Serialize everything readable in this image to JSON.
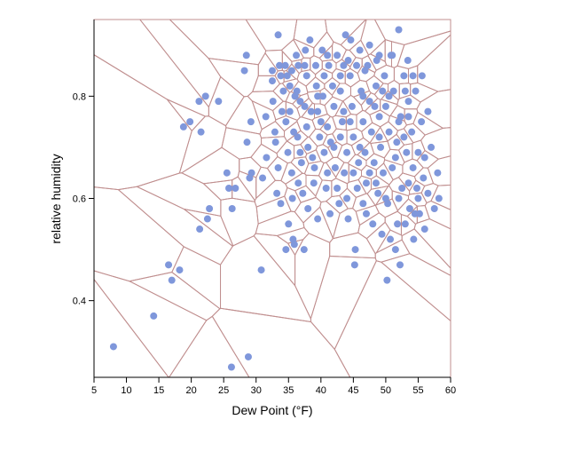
{
  "chart_data": {
    "type": "scatter",
    "title": "",
    "xlabel": "Dew Point (°F)",
    "ylabel": "relative humidity",
    "xlim": [
      5,
      60
    ],
    "ylim": [
      0.25,
      0.95
    ],
    "x_ticks": [
      5,
      10,
      15,
      20,
      25,
      30,
      35,
      40,
      45,
      50,
      55,
      60
    ],
    "y_ticks": [
      0.4,
      0.6,
      0.8
    ],
    "overlay": "voronoi",
    "colors": {
      "points": "#7f97db",
      "voronoi": "#c08f8f",
      "axis": "#000000"
    },
    "points": [
      [
        8,
        0.31
      ],
      [
        14.2,
        0.37
      ],
      [
        16.5,
        0.47
      ],
      [
        17,
        0.44
      ],
      [
        18.2,
        0.46
      ],
      [
        18.8,
        0.74
      ],
      [
        19.8,
        0.75
      ],
      [
        21.2,
        0.79
      ],
      [
        21.5,
        0.73
      ],
      [
        21.3,
        0.54
      ],
      [
        22.5,
        0.56
      ],
      [
        22.8,
        0.58
      ],
      [
        22.2,
        0.8
      ],
      [
        24.2,
        0.79
      ],
      [
        25.5,
        0.65
      ],
      [
        25.8,
        0.62
      ],
      [
        26.2,
        0.27
      ],
      [
        26.8,
        0.62
      ],
      [
        26.3,
        0.58
      ],
      [
        28.2,
        0.85
      ],
      [
        28.5,
        0.88
      ],
      [
        28.6,
        0.71
      ],
      [
        28.8,
        0.29
      ],
      [
        29.2,
        0.75
      ],
      [
        29,
        0.64
      ],
      [
        29.3,
        0.65
      ],
      [
        30.8,
        0.46
      ],
      [
        31,
        0.64
      ],
      [
        31.5,
        0.76
      ],
      [
        31.6,
        0.68
      ],
      [
        32.5,
        0.85
      ],
      [
        32.5,
        0.83
      ],
      [
        32.6,
        0.79
      ],
      [
        32.9,
        0.73
      ],
      [
        33,
        0.71
      ],
      [
        33.2,
        0.61
      ],
      [
        33.4,
        0.92
      ],
      [
        33.6,
        0.86
      ],
      [
        33.4,
        0.66
      ],
      [
        33.8,
        0.59
      ],
      [
        34.2,
        0.81
      ],
      [
        34.5,
        0.86
      ],
      [
        34.8,
        0.84
      ],
      [
        34.6,
        0.75
      ],
      [
        34.9,
        0.69
      ],
      [
        34.6,
        0.5
      ],
      [
        35,
        0.55
      ],
      [
        35.2,
        0.82
      ],
      [
        35.2,
        0.77
      ],
      [
        35.5,
        0.65
      ],
      [
        35.6,
        0.6
      ],
      [
        35.7,
        0.52
      ],
      [
        35.9,
        0.51
      ],
      [
        36.2,
        0.88
      ],
      [
        36.3,
        0.81
      ],
      [
        36.4,
        0.72
      ],
      [
        36.5,
        0.86
      ],
      [
        36.8,
        0.69
      ],
      [
        37,
        0.67
      ],
      [
        37.2,
        0.61
      ],
      [
        37.4,
        0.5
      ],
      [
        37.6,
        0.89
      ],
      [
        37.8,
        0.84
      ],
      [
        37.8,
        0.74
      ],
      [
        38,
        0.58
      ],
      [
        38.3,
        0.91
      ],
      [
        38.5,
        0.77
      ],
      [
        38.7,
        0.68
      ],
      [
        38.9,
        0.63
      ],
      [
        39,
        0.66
      ],
      [
        39.2,
        0.86
      ],
      [
        39.3,
        0.82
      ],
      [
        39.5,
        0.56
      ],
      [
        39.8,
        0.72
      ],
      [
        40.2,
        0.89
      ],
      [
        40.3,
        0.8
      ],
      [
        40.5,
        0.69
      ],
      [
        40.8,
        0.62
      ],
      [
        41,
        0.74
      ],
      [
        41.2,
        0.86
      ],
      [
        41.4,
        0.57
      ],
      [
        41.5,
        0.71
      ],
      [
        41.8,
        0.82
      ],
      [
        42,
        0.78
      ],
      [
        42.2,
        0.66
      ],
      [
        42.5,
        0.62
      ],
      [
        42.5,
        0.88
      ],
      [
        42.8,
        0.59
      ],
      [
        43,
        0.81
      ],
      [
        43.3,
        0.75
      ],
      [
        43.5,
        0.86
      ],
      [
        43.6,
        0.65
      ],
      [
        44,
        0.69
      ],
      [
        44.2,
        0.56
      ],
      [
        44.5,
        0.84
      ],
      [
        44.6,
        0.91
      ],
      [
        44.8,
        0.78
      ],
      [
        45,
        0.72
      ],
      [
        45.2,
        0.47
      ],
      [
        45.3,
        0.5
      ],
      [
        45.5,
        0.86
      ],
      [
        45.6,
        0.62
      ],
      [
        45.8,
        0.67
      ],
      [
        46,
        0.89
      ],
      [
        46.2,
        0.81
      ],
      [
        46.5,
        0.75
      ],
      [
        46.5,
        0.59
      ],
      [
        46.8,
        0.69
      ],
      [
        47,
        0.63
      ],
      [
        47.2,
        0.86
      ],
      [
        47.5,
        0.79
      ],
      [
        47.8,
        0.73
      ],
      [
        48,
        0.55
      ],
      [
        48.2,
        0.67
      ],
      [
        48.5,
        0.82
      ],
      [
        48.6,
        0.87
      ],
      [
        48.8,
        0.61
      ],
      [
        49,
        0.76
      ],
      [
        49.2,
        0.7
      ],
      [
        49.4,
        0.53
      ],
      [
        49.6,
        0.65
      ],
      [
        49.8,
        0.84
      ],
      [
        50,
        0.78
      ],
      [
        50.2,
        0.44
      ],
      [
        50.3,
        0.59
      ],
      [
        50.5,
        0.73
      ],
      [
        50.7,
        0.52
      ],
      [
        50.8,
        0.88
      ],
      [
        51,
        0.66
      ],
      [
        51.2,
        0.81
      ],
      [
        51.5,
        0.5
      ],
      [
        51.7,
        0.71
      ],
      [
        52,
        0.93
      ],
      [
        52.2,
        0.47
      ],
      [
        52.3,
        0.76
      ],
      [
        52.5,
        0.62
      ],
      [
        52.8,
        0.84
      ],
      [
        53,
        0.55
      ],
      [
        53.2,
        0.69
      ],
      [
        53.4,
        0.87
      ],
      [
        53.5,
        0.79
      ],
      [
        53.7,
        0.58
      ],
      [
        54,
        0.73
      ],
      [
        54.2,
        0.66
      ],
      [
        54.3,
        0.52
      ],
      [
        54.6,
        0.81
      ],
      [
        54.8,
        0.62
      ],
      [
        55,
        0.69
      ],
      [
        55.2,
        0.57
      ],
      [
        55.5,
        0.75
      ],
      [
        55.8,
        0.64
      ],
      [
        56,
        0.54
      ],
      [
        56.5,
        0.61
      ],
      [
        57,
        0.7
      ],
      [
        57.5,
        0.58
      ],
      [
        58,
        0.65
      ],
      [
        58.2,
        0.6
      ],
      [
        56.5,
        0.77
      ],
      [
        55.6,
        0.84
      ],
      [
        54.2,
        0.84
      ],
      [
        51,
        0.88
      ],
      [
        49,
        0.88
      ],
      [
        47.5,
        0.9
      ],
      [
        43.8,
        0.92
      ],
      [
        41,
        0.88
      ],
      [
        39.5,
        0.77
      ],
      [
        37.5,
        0.78
      ],
      [
        36,
        0.8
      ],
      [
        35.5,
        0.85
      ],
      [
        34,
        0.77
      ],
      [
        33.8,
        0.84
      ],
      [
        36.8,
        0.79
      ],
      [
        40.5,
        0.84
      ],
      [
        43,
        0.84
      ],
      [
        46.5,
        0.8
      ],
      [
        50.5,
        0.8
      ],
      [
        52,
        0.75
      ],
      [
        53.5,
        0.76
      ],
      [
        50,
        0.6
      ],
      [
        48.5,
        0.63
      ],
      [
        45,
        0.65
      ],
      [
        42,
        0.7
      ],
      [
        40,
        0.75
      ],
      [
        38,
        0.7
      ],
      [
        36.5,
        0.63
      ],
      [
        44,
        0.6
      ],
      [
        47,
        0.57
      ],
      [
        52,
        0.6
      ],
      [
        55,
        0.6
      ],
      [
        53.5,
        0.63
      ],
      [
        51.5,
        0.68
      ],
      [
        49,
        0.72
      ],
      [
        46,
        0.7
      ],
      [
        43.5,
        0.77
      ],
      [
        39.5,
        0.8
      ],
      [
        41,
        0.65
      ],
      [
        44.5,
        0.75
      ],
      [
        48.3,
        0.78
      ],
      [
        52.8,
        0.72
      ],
      [
        56,
        0.68
      ],
      [
        54.5,
        0.57
      ],
      [
        51.8,
        0.55
      ],
      [
        47.5,
        0.65
      ],
      [
        43,
        0.72
      ],
      [
        37.5,
        0.86
      ],
      [
        35.8,
        0.73
      ],
      [
        44.2,
        0.87
      ],
      [
        46.8,
        0.85
      ],
      [
        49.5,
        0.81
      ],
      [
        53,
        0.81
      ]
    ]
  }
}
